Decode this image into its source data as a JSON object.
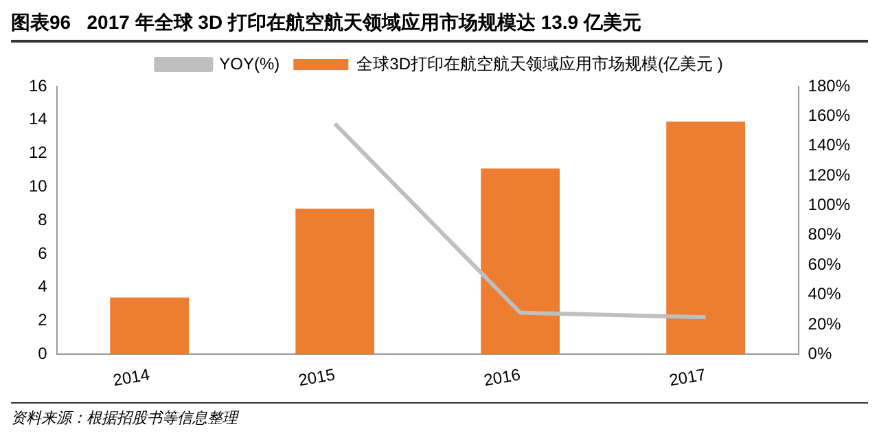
{
  "chart_data": {
    "type": "bar",
    "title": "图表96   2017 年全球 3D 打印在航空航天领域应用市场规模达 13.9 亿美元",
    "categories": [
      "2014",
      "2015",
      "2016",
      "2017"
    ],
    "series": [
      {
        "name": "全球3D打印在航空航天领域应用市场规模(亿美元 )",
        "color": "#ed7d31",
        "values": [
          3.4,
          8.7,
          11.1,
          13.9
        ]
      },
      {
        "name": "YOY(%)",
        "type": "line",
        "axis": "y2",
        "color": "#bfbfbf",
        "values": [
          null,
          155,
          28,
          25
        ]
      }
    ],
    "ylim": [
      0,
      16
    ],
    "yticks": [
      0,
      2,
      4,
      6,
      8,
      10,
      12,
      14,
      16
    ],
    "y2lim": [
      0,
      180
    ],
    "y2ticks": [
      {
        "value": 0,
        "label": "0%"
      },
      {
        "value": 20,
        "label": "20%"
      },
      {
        "value": 40,
        "label": "40%"
      },
      {
        "value": 60,
        "label": "60%"
      },
      {
        "value": 80,
        "label": "80%"
      },
      {
        "value": 100,
        "label": "100%"
      },
      {
        "value": 120,
        "label": "120%"
      },
      {
        "value": 140,
        "label": "140%"
      },
      {
        "value": 160,
        "label": "160%"
      },
      {
        "value": 180,
        "label": "180%"
      }
    ],
    "grid": false,
    "legend": "top",
    "marker": "none",
    "annotations": [
      "资料来源：根据招股书等信息整理"
    ]
  }
}
